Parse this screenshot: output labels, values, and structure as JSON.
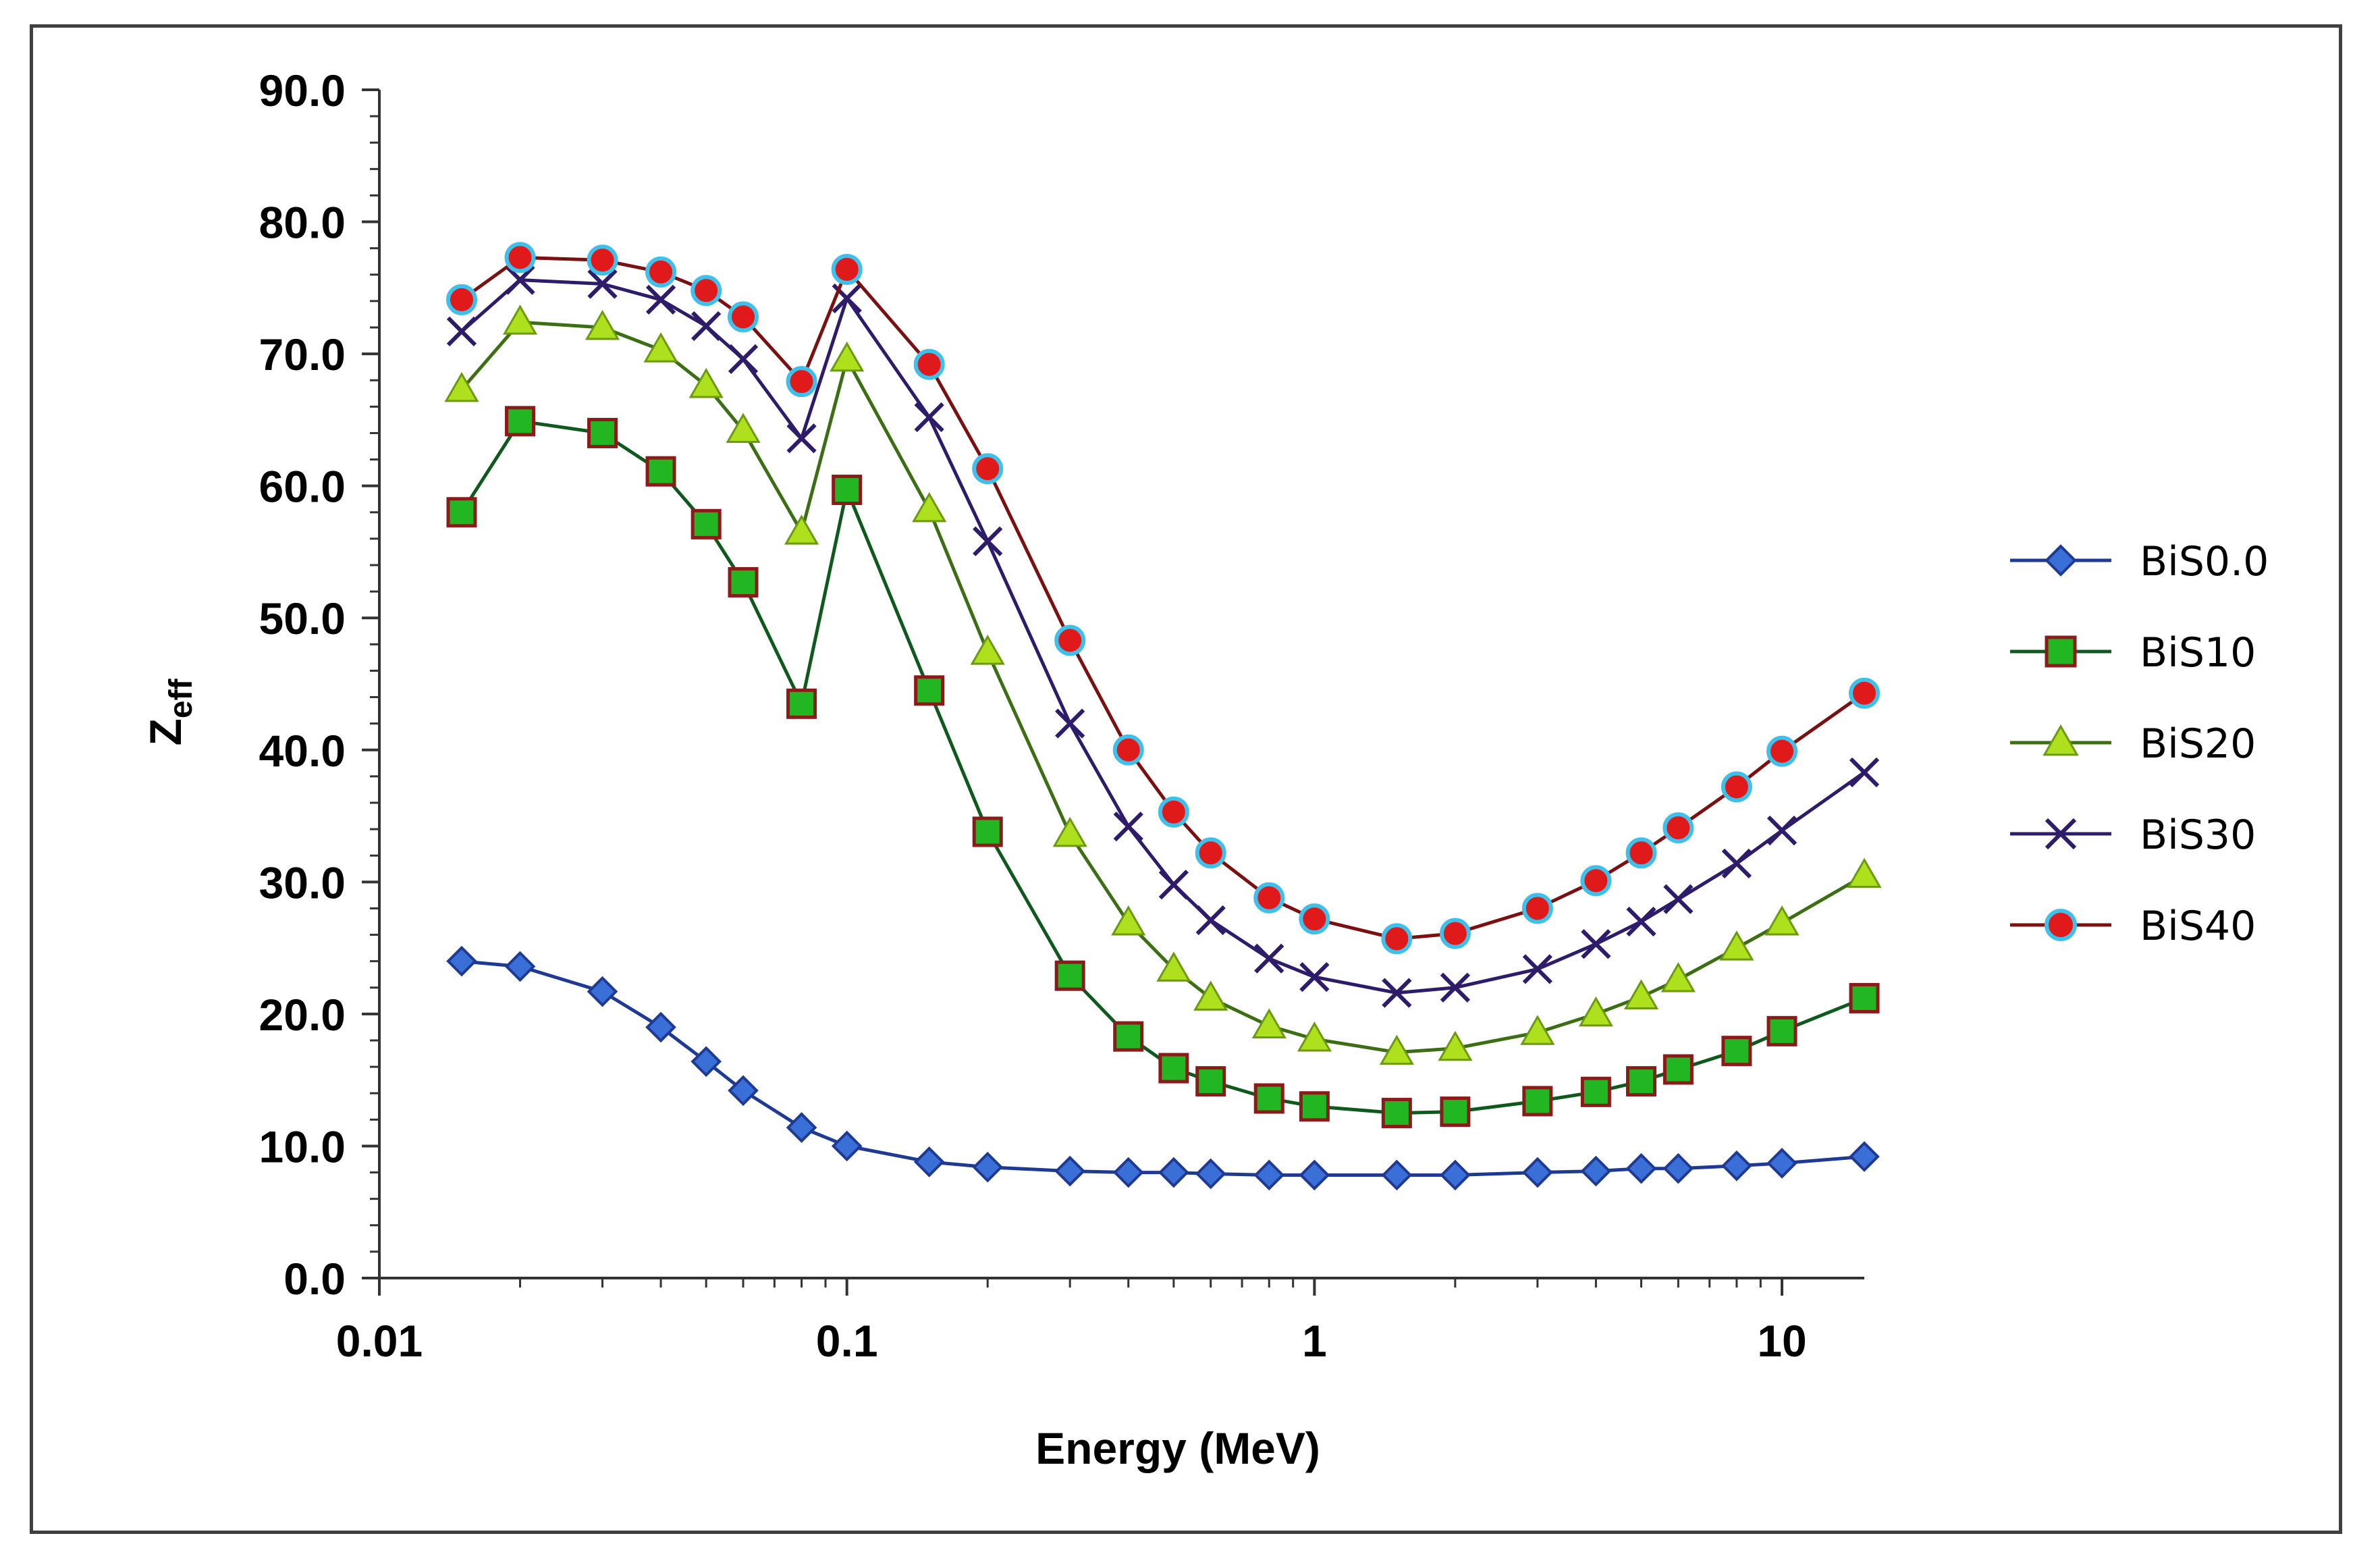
{
  "chart_data": {
    "type": "line",
    "xscale": "log",
    "xlabel": "Energy (MeV)",
    "ylabel": "Z",
    "ylabel_sub": "eff",
    "xlim": [
      0.01,
      15
    ],
    "ylim": [
      0,
      90
    ],
    "x_ticks": [
      {
        "value": 0.01,
        "label": "0.01"
      },
      {
        "value": 0.1,
        "label": "0.1"
      },
      {
        "value": 1,
        "label": "1"
      },
      {
        "value": 10,
        "label": "10"
      }
    ],
    "y_ticks": [
      {
        "value": 0,
        "label": "0.0"
      },
      {
        "value": 10,
        "label": "10.0"
      },
      {
        "value": 20,
        "label": "20.0"
      },
      {
        "value": 30,
        "label": "30.0"
      },
      {
        "value": 40,
        "label": "40.0"
      },
      {
        "value": 50,
        "label": "50.0"
      },
      {
        "value": 60,
        "label": "60.0"
      },
      {
        "value": 70,
        "label": "70.0"
      },
      {
        "value": 80,
        "label": "80.0"
      },
      {
        "value": 90,
        "label": "90.0"
      }
    ],
    "x": [
      0.015,
      0.02,
      0.03,
      0.04,
      0.05,
      0.06,
      0.08,
      0.1,
      0.15,
      0.2,
      0.3,
      0.4,
      0.5,
      0.6,
      0.8,
      1,
      1.5,
      2,
      3,
      4,
      5,
      6,
      8,
      10,
      15
    ],
    "series": [
      {
        "name": "BiS0.0",
        "marker": "diamond",
        "line_color": "#1f3a93",
        "fill": "#3a6fd8",
        "stroke": "#1f3a93",
        "values": [
          24.0,
          23.6,
          21.7,
          19.0,
          16.4,
          14.2,
          11.4,
          10.0,
          8.8,
          8.4,
          8.1,
          8.0,
          8.0,
          7.9,
          7.8,
          7.8,
          7.8,
          7.8,
          8.0,
          8.1,
          8.3,
          8.3,
          8.5,
          8.7,
          9.2
        ]
      },
      {
        "name": "BiS10",
        "marker": "square",
        "line_color": "#0e5a1c",
        "fill": "#22b722",
        "stroke": "#8b1a1a",
        "values": [
          58.0,
          64.9,
          64.0,
          61.1,
          57.1,
          52.7,
          43.5,
          59.7,
          44.5,
          33.8,
          22.9,
          18.3,
          15.9,
          14.9,
          13.6,
          13.0,
          12.5,
          12.6,
          13.4,
          14.1,
          14.9,
          15.8,
          17.2,
          18.7,
          21.2
        ]
      },
      {
        "name": "BiS20",
        "marker": "triangle",
        "line_color": "#3c6e14",
        "fill": "#aee01e",
        "stroke": "#6b9a10",
        "values": [
          67.3,
          72.4,
          72.0,
          70.3,
          67.6,
          64.2,
          56.5,
          69.6,
          58.2,
          47.4,
          33.6,
          26.9,
          23.4,
          21.2,
          19.1,
          18.1,
          17.1,
          17.4,
          18.6,
          20.0,
          21.3,
          22.6,
          25.0,
          26.9,
          30.5
        ]
      },
      {
        "name": "BiS30",
        "marker": "x",
        "line_color": "#2e1c6b",
        "fill": "none",
        "stroke": "#2e1c6b",
        "values": [
          71.7,
          75.6,
          75.3,
          74.1,
          72.1,
          69.6,
          63.6,
          74.2,
          65.2,
          55.8,
          42.0,
          34.2,
          29.8,
          27.1,
          24.2,
          22.8,
          21.6,
          22.0,
          23.4,
          25.3,
          27.0,
          28.7,
          31.4,
          33.9,
          38.3
        ]
      },
      {
        "name": "BiS40",
        "marker": "circle",
        "line_color": "#7a1010",
        "fill": "#e01a1a",
        "stroke": "#3fc0ea",
        "values": [
          74.1,
          77.3,
          77.1,
          76.2,
          74.8,
          72.8,
          67.9,
          76.4,
          69.2,
          61.3,
          48.3,
          40.0,
          35.3,
          32.2,
          28.8,
          27.2,
          25.7,
          26.1,
          28.0,
          30.1,
          32.2,
          34.1,
          37.2,
          39.9,
          44.3
        ]
      }
    ],
    "legend_position": "right",
    "grid": false
  }
}
